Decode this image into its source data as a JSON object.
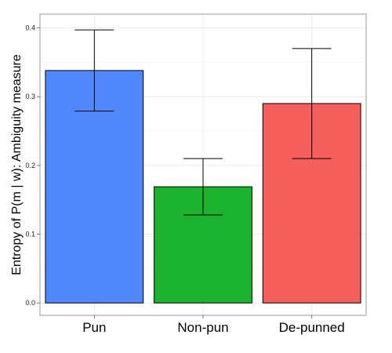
{
  "chart_data": {
    "type": "bar",
    "title": "",
    "xlabel": "",
    "ylabel": "Entropy of P(m | w): Ambiguity measure",
    "categories": [
      "Pun",
      "Non-pun",
      "De-punned"
    ],
    "values": [
      0.338,
      0.169,
      0.29
    ],
    "error_low": [
      0.279,
      0.128,
      0.21
    ],
    "error_high": [
      0.397,
      0.21,
      0.37
    ],
    "colors": [
      "#5088FC",
      "#1AB22E",
      "#F45E5B"
    ],
    "ylim": [
      -0.018,
      0.42
    ],
    "yticks": [
      0.0,
      0.1,
      0.2,
      0.3,
      0.4
    ],
    "ytick_labels": [
      "0.0",
      "0.1",
      "0.2",
      "0.3",
      "0.4"
    ],
    "grid": true
  }
}
